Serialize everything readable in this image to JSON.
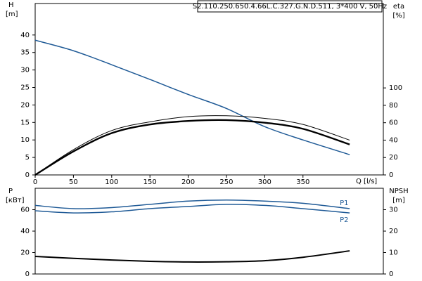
{
  "chart_data": [
    {
      "type": "line",
      "title": "S2.110.250.650.4.66L.C.327.G.N.D.511, 3*400 V, 50Hz",
      "x_label": "Q [l/s]",
      "y_label": [
        "H",
        "[m]"
      ],
      "y2_label": [
        "eta",
        "[%]"
      ],
      "x": [
        0,
        50,
        100,
        150,
        200,
        250,
        300,
        350,
        411
      ],
      "xlim": [
        0,
        455
      ],
      "xticks": [
        0,
        50,
        100,
        150,
        200,
        250,
        300,
        350
      ],
      "ylim": [
        0,
        49
      ],
      "yticks": [
        0,
        5,
        10,
        15,
        20,
        25,
        30,
        35,
        40
      ],
      "y2lim": [
        0,
        197
      ],
      "y2ticks": [
        0,
        20,
        40,
        60,
        80,
        100
      ],
      "series": [
        {
          "color": "#1f5a96",
          "values": [
            38.5,
            35.5,
            31.5,
            27.3,
            23,
            19,
            13.8,
            10,
            5.8
          ]
        },
        {
          "color": "#000000",
          "axis": "y2",
          "width": 1,
          "values": [
            0,
            29,
            51,
            61,
            67,
            68,
            65,
            58,
            40
          ]
        },
        {
          "color": "#000000",
          "axis": "y2",
          "width": 2.4,
          "values": [
            0,
            27,
            48,
            58,
            62,
            63,
            60,
            53,
            35
          ]
        }
      ]
    },
    {
      "type": "line",
      "y_label": [
        "P",
        "[кВт]"
      ],
      "y2_label": [
        "NPSH",
        "[m]"
      ],
      "x": [
        0,
        50,
        100,
        150,
        200,
        250,
        300,
        350,
        411
      ],
      "xlim": [
        0,
        455
      ],
      "ylim": [
        0,
        80
      ],
      "yticks": [
        0,
        20,
        40,
        60
      ],
      "y2lim": [
        0,
        40
      ],
      "y2ticks": [
        0,
        10,
        20,
        30
      ],
      "series": [
        {
          "name": "P1",
          "color": "#1f5a96",
          "values": [
            64,
            61,
            62,
            65,
            68,
            69,
            68,
            66,
            61
          ]
        },
        {
          "name": "P2",
          "color": "#1f5a96",
          "values": [
            59,
            57,
            58,
            61,
            63,
            65,
            64,
            61,
            57
          ]
        },
        {
          "color": "#000000",
          "axis": "y2",
          "width": 2,
          "values": [
            8.2,
            7.3,
            6.5,
            5.9,
            5.6,
            5.7,
            6.2,
            7.8,
            10.8
          ]
        }
      ]
    }
  ]
}
